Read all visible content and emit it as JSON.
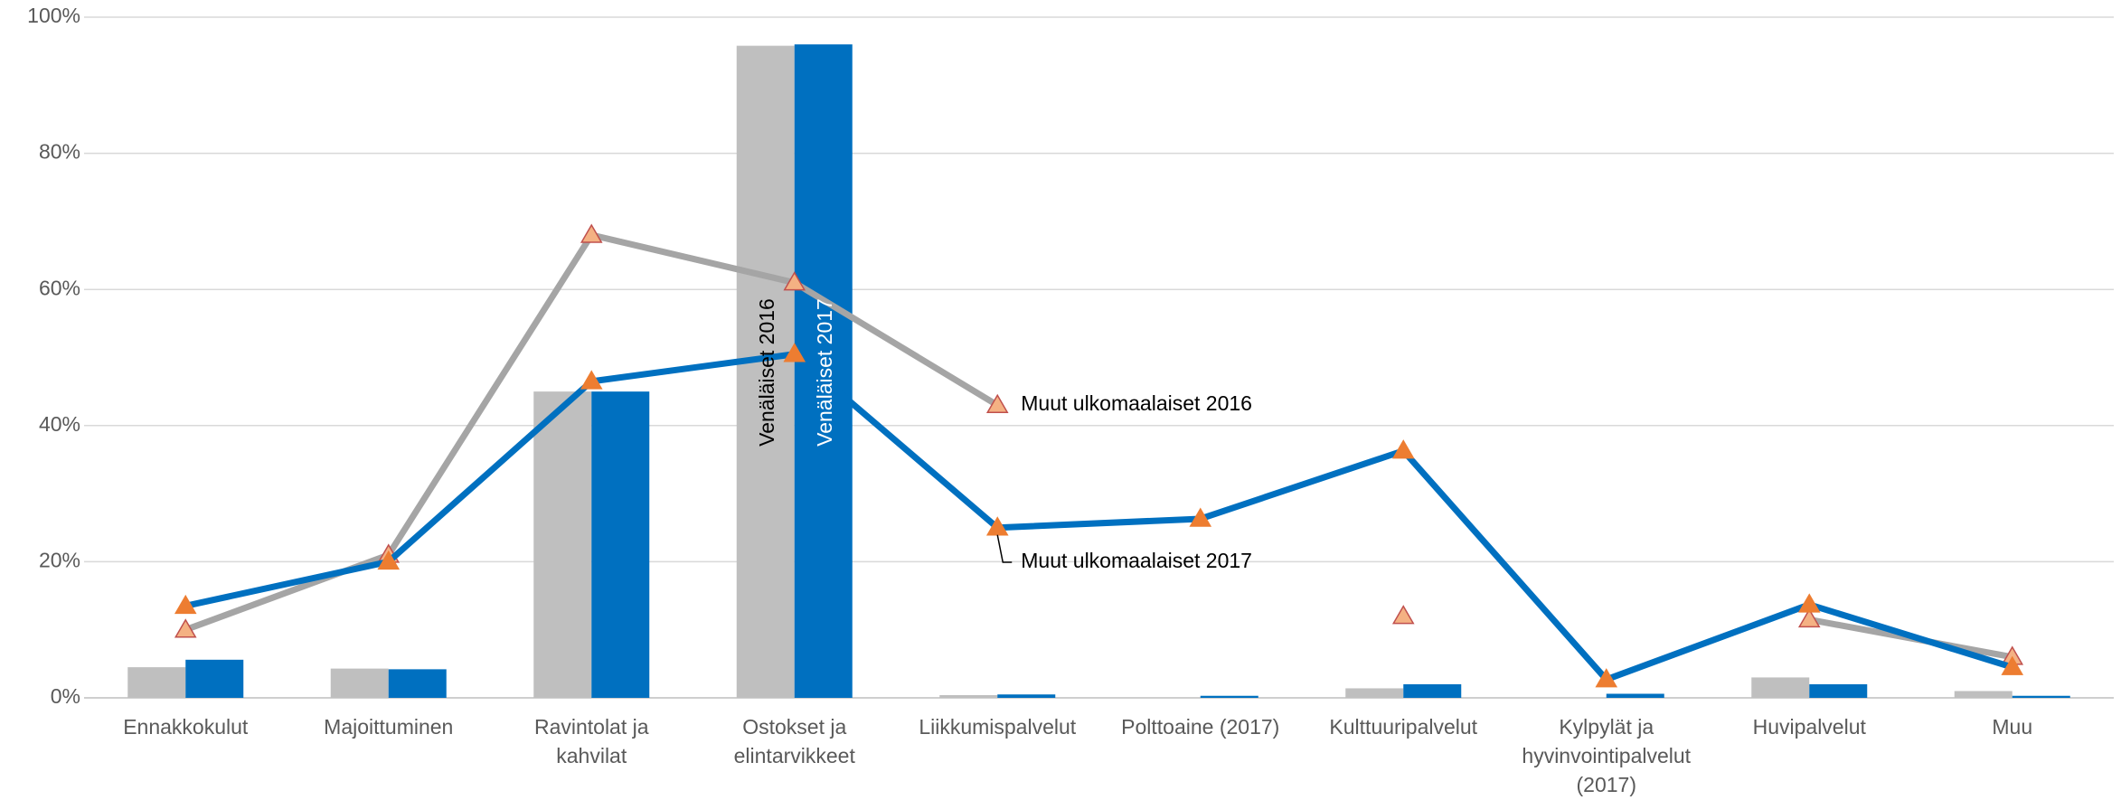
{
  "chart_data": {
    "type": "combo",
    "categories": [
      "Ennakkokulut",
      "Majoittuminen",
      "Ravintolat ja kahvilat",
      "Ostokset ja elintarvikkeet",
      "Liikkumispalvelut",
      "Polttoaine (2017)",
      "Kulttuuripalvelut",
      "Kylpylät ja hyvinvointipalvelut (2017)",
      "Huvipalvelut",
      "Muu"
    ],
    "series": [
      {
        "name": "Venäläiset 2016",
        "type": "bar",
        "color": "#bfbfbf",
        "values": [
          4.5,
          4.3,
          45,
          95.8,
          0.4,
          null,
          1.4,
          null,
          3,
          1
        ]
      },
      {
        "name": "Venäläiset 2017",
        "type": "bar",
        "color": "#0070c0",
        "values": [
          5.6,
          4.2,
          45,
          96,
          0.5,
          0.3,
          2,
          0.6,
          2,
          0.3
        ]
      },
      {
        "name": "Muut ulkomaalaiset 2016",
        "type": "line",
        "color": "#a5a5a5",
        "marker_color": "#f4b183",
        "values": [
          10,
          21,
          68,
          61,
          43,
          null,
          12,
          null,
          11.5,
          6
        ]
      },
      {
        "name": "Muut ulkomaalaiset 2017",
        "type": "line",
        "color": "#0070c0",
        "marker_color": "#ed7d31",
        "values": [
          13.5,
          20,
          46.5,
          50.5,
          25,
          26.3,
          36.3,
          2.7,
          13.7,
          4.5
        ]
      }
    ],
    "ylim": [
      0,
      100
    ],
    "yticks": [
      {
        "value": 0,
        "label": "0%"
      },
      {
        "value": 20,
        "label": "20%"
      },
      {
        "value": 40,
        "label": "40%"
      },
      {
        "value": 60,
        "label": "60%"
      },
      {
        "value": 80,
        "label": "80%"
      },
      {
        "value": 100,
        "label": "100%"
      }
    ],
    "grid": true
  }
}
